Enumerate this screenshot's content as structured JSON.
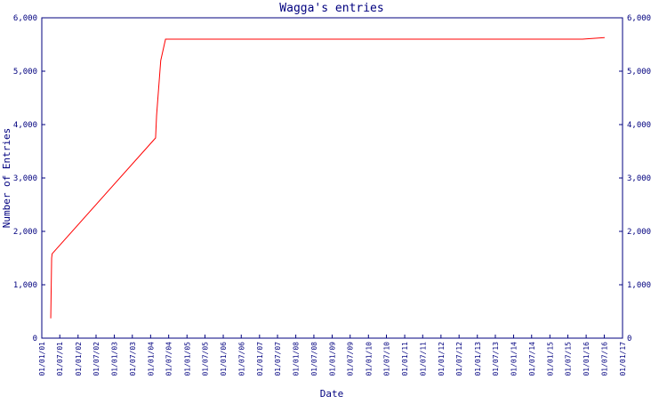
{
  "chart_data": {
    "type": "line",
    "title": "Wagga's entries",
    "xlabel": "Date",
    "ylabel": "Number of Entries",
    "x": [
      "01/04/01",
      "10/04/01",
      "15/04/01",
      "20/02/04",
      "01/03/04",
      "12/04/04",
      "30/05/04",
      "25/11/15",
      "05/07/16"
    ],
    "values": [
      370,
      1500,
      1580,
      3750,
      4170,
      5200,
      5600,
      5600,
      5630
    ],
    "color": "#ff0000",
    "xlim": [
      "01/01/01",
      "01/01/17"
    ],
    "xticks": [
      "01/01/01",
      "01/07/01",
      "01/01/02",
      "01/07/02",
      "01/01/03",
      "01/07/03",
      "01/01/04",
      "01/07/04",
      "01/01/05",
      "01/07/05",
      "01/01/06",
      "01/07/06",
      "01/01/07",
      "01/07/07",
      "01/01/08",
      "01/07/08",
      "01/01/09",
      "01/07/09",
      "01/01/10",
      "01/07/10",
      "01/01/11",
      "01/07/11",
      "01/01/12",
      "01/07/12",
      "01/01/13",
      "01/07/13",
      "01/01/14",
      "01/07/14",
      "01/01/15",
      "01/07/15",
      "01/01/16",
      "01/07/16",
      "01/01/17"
    ],
    "ylim": [
      0,
      6000
    ],
    "yticks": [
      0,
      {
        "value": 1000,
        "label": "1,000"
      },
      {
        "value": 2000,
        "label": "2,000"
      },
      {
        "value": 3000,
        "label": "3,000"
      },
      {
        "value": 4000,
        "label": "4,000"
      },
      {
        "value": 5000,
        "label": "5,000"
      },
      {
        "value": 6000,
        "label": "6,000"
      }
    ],
    "y2lim": [
      0,
      6000
    ],
    "y2ticks": [
      0,
      {
        "value": 1000,
        "label": "1,000"
      },
      {
        "value": 2000,
        "label": "2,000"
      },
      {
        "value": 3000,
        "label": "3,000"
      },
      {
        "value": 4000,
        "label": "4,000"
      },
      {
        "value": 5000,
        "label": "5,000"
      },
      {
        "value": 6000,
        "label": "6,000"
      }
    ]
  }
}
